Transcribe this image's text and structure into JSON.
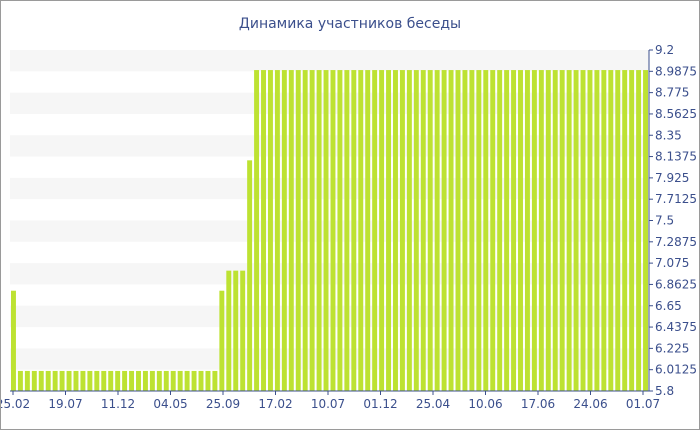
{
  "chart_data": {
    "type": "bar",
    "title": "Динамика участников беседы",
    "xlabel": "",
    "ylabel": "",
    "ylim": [
      5.8,
      9.2
    ],
    "y_ticks": [
      "9.2",
      "8.9875",
      "8.775",
      "8.5625",
      "8.35",
      "8.1375",
      "7.925",
      "7.7125",
      "7.5",
      "7.2875",
      "7.075",
      "6.8625",
      "6.65",
      "6.4375",
      "6.225",
      "6.0125",
      "5.8"
    ],
    "x_tick_labels": [
      "25.02",
      "19.07",
      "11.12",
      "04.05",
      "25.09",
      "17.02",
      "10.07",
      "01.12",
      "25.04",
      "10.06",
      "17.06",
      "24.06",
      "01.07"
    ],
    "bar_color": "#bde232",
    "grid": "horizontal alternating bands",
    "segments": [
      {
        "value": 6.8,
        "count": 1
      },
      {
        "value": 6.0,
        "count": 29
      },
      {
        "value": 6.8,
        "count": 1
      },
      {
        "value": 7.0,
        "count": 3
      },
      {
        "value": 8.1,
        "count": 1
      },
      {
        "value": 9.0,
        "count": 57
      }
    ]
  }
}
